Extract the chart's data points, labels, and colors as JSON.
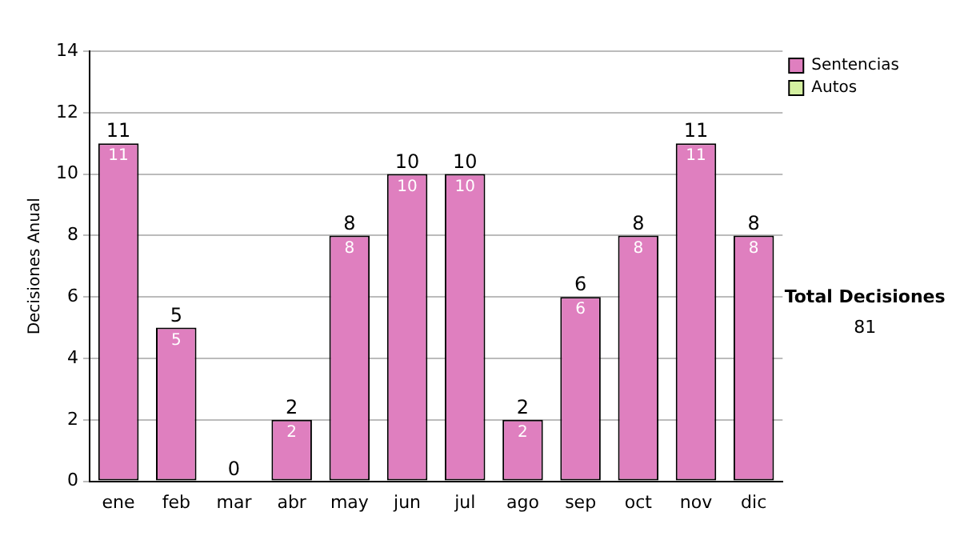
{
  "chart_data": {
    "type": "bar",
    "ylabel": "Decisiones Anual",
    "categories": [
      "ene",
      "feb",
      "mar",
      "abr",
      "may",
      "jun",
      "jul",
      "ago",
      "sep",
      "oct",
      "nov",
      "dic"
    ],
    "series": [
      {
        "name": "Sentencias",
        "color": "#df7fbf",
        "values": [
          11,
          5,
          0,
          2,
          8,
          10,
          10,
          2,
          6,
          8,
          11,
          8
        ],
        "value_labels": [
          "11",
          "5",
          null,
          "2",
          "8",
          "10",
          "10",
          "2",
          "6",
          "8",
          "11",
          "8"
        ]
      },
      {
        "name": "Autos",
        "color": "#d4f0a0",
        "values": [
          0,
          0,
          0,
          0,
          0,
          0,
          0,
          0,
          0,
          0,
          0,
          0
        ]
      }
    ],
    "stacked": true,
    "totals": [
      "11",
      "5",
      "0",
      "2",
      "8",
      "10",
      "10",
      "2",
      "6",
      "8",
      "11",
      "8"
    ],
    "ylim": [
      0,
      14
    ],
    "yticks": [
      0,
      2,
      4,
      6,
      8,
      10,
      12,
      14
    ],
    "grid": "y",
    "legend": "right",
    "annotations": [
      "Total Decisiones",
      "81"
    ]
  }
}
